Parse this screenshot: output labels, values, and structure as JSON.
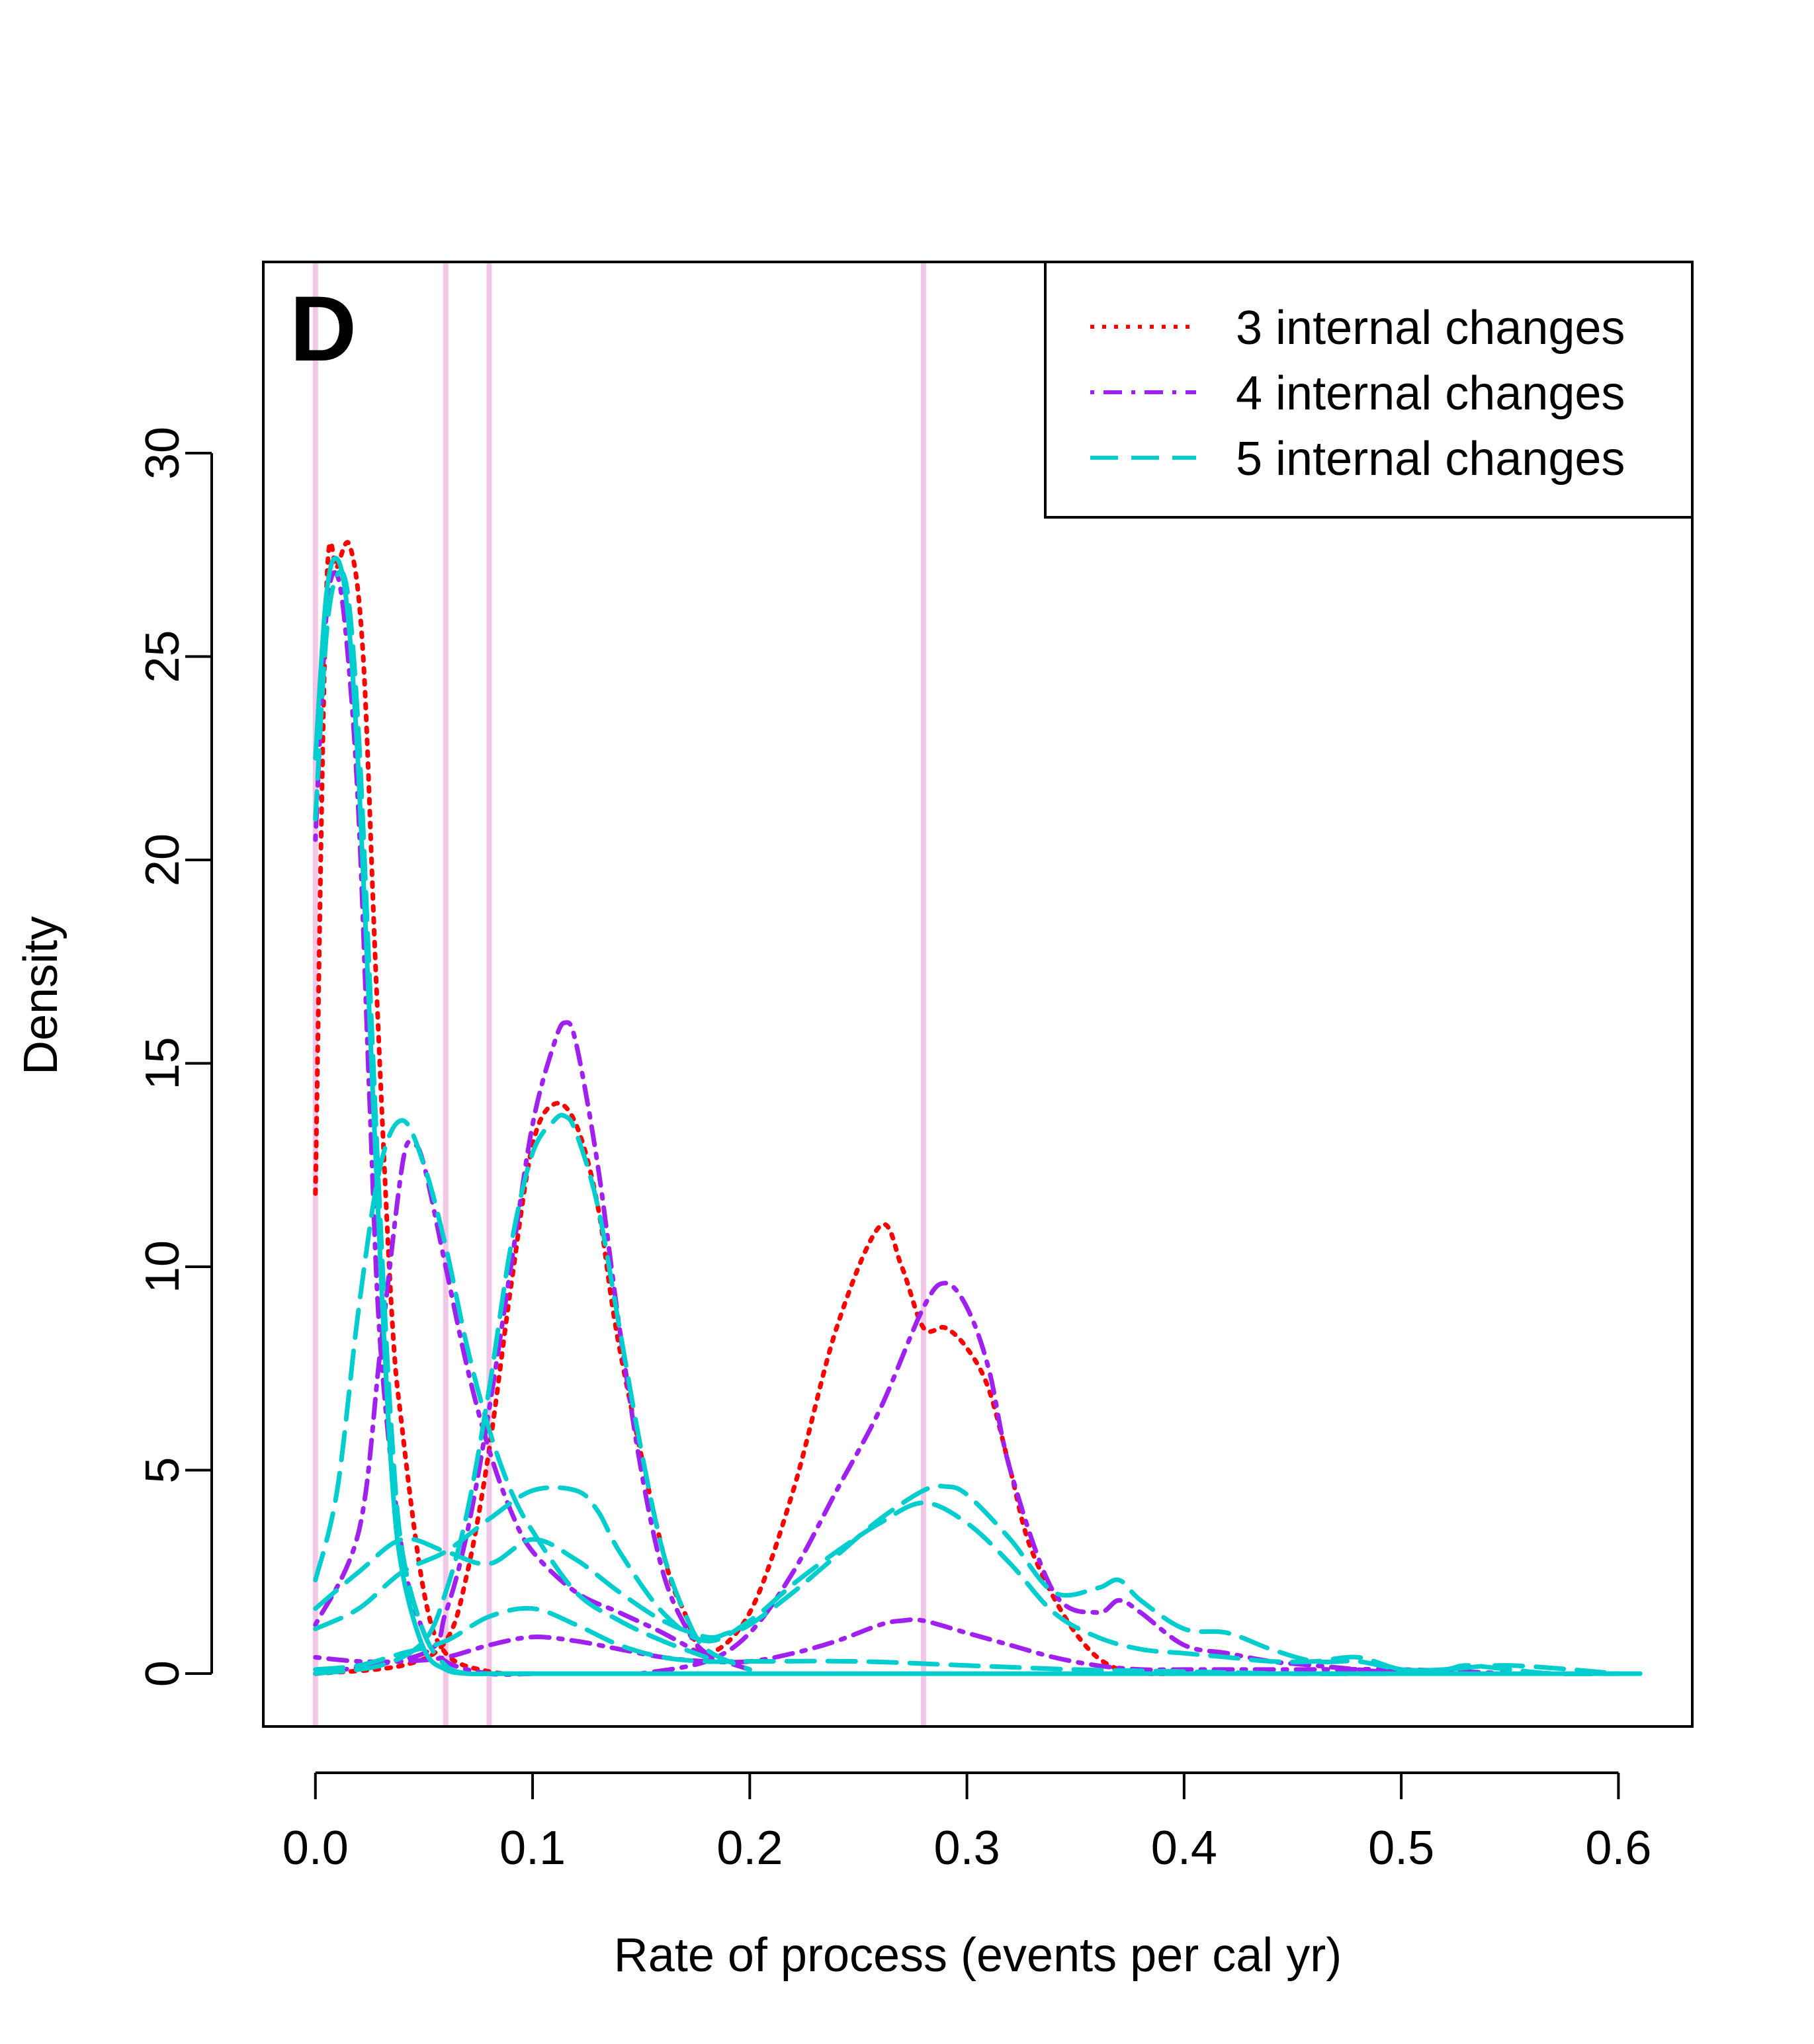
{
  "chart_data": {
    "type": "line",
    "panel_label": "D",
    "xlabel": "Rate of process (events per cal yr)",
    "ylabel": "Density",
    "xlim": [
      -0.024,
      0.634
    ],
    "ylim": [
      -1.3,
      34.7
    ],
    "x_ticks": [
      0.0,
      0.1,
      0.2,
      0.3,
      0.4,
      0.5,
      0.6
    ],
    "x_tick_labels": [
      "0.0",
      "0.1",
      "0.2",
      "0.3",
      "0.4",
      "0.5",
      "0.6"
    ],
    "y_ticks": [
      0,
      5,
      10,
      15,
      20,
      25,
      30
    ],
    "y_tick_labels": [
      "0",
      "5",
      "10",
      "15",
      "20",
      "25",
      "30"
    ],
    "grid": false,
    "legend_position": "top-right",
    "colors": {
      "red": "#ff0000",
      "purple": "#a020f0",
      "cyan": "#00cdcd",
      "vline": "#f2c6e6"
    },
    "vlines": [
      0.0,
      0.06,
      0.08,
      0.28
    ],
    "legend": [
      {
        "label": "3 internal changes",
        "color": "#ff0000",
        "dash": "dotted"
      },
      {
        "label": "4 internal changes",
        "color": "#a020f0",
        "dash": "dotdash"
      },
      {
        "label": "5 internal changes",
        "color": "#00cdcd",
        "dash": "dashed"
      }
    ],
    "series": [
      {
        "group": "3 internal changes",
        "color": "#ff0000",
        "dash": "dotted",
        "x": [
          0,
          0.005,
          0.01,
          0.016,
          0.022,
          0.028,
          0.035,
          0.04,
          0.05,
          0.06,
          0.08,
          0.1
        ],
        "y": [
          11.8,
          26.5,
          27.2,
          27.7,
          25.0,
          17.0,
          9.0,
          6.0,
          2.0,
          0.5,
          0.05,
          0
        ]
      },
      {
        "group": "3 internal changes",
        "color": "#ff0000",
        "dash": "dotted",
        "x": [
          0,
          0.04,
          0.06,
          0.07,
          0.08,
          0.09,
          0.1,
          0.11,
          0.12,
          0.13,
          0.14,
          0.16,
          0.17,
          0.18,
          0.2,
          0.22,
          0.24,
          0.26,
          0.27,
          0.28,
          0.29,
          0.3,
          0.31,
          0.32,
          0.33,
          0.35,
          0.37,
          0.4
        ],
        "y": [
          0,
          0.2,
          0.8,
          2.5,
          5.5,
          9.5,
          13.0,
          14.0,
          13.5,
          11.5,
          8.0,
          3.0,
          1.5,
          0.5,
          1.5,
          4.5,
          8.5,
          11.0,
          10.0,
          8.5,
          8.5,
          8.0,
          7.0,
          5.0,
          3.0,
          1.0,
          0.1,
          0
        ]
      }
    ],
    "series_b": [
      {
        "group": "4 internal changes",
        "color": "#a020f0",
        "dash": "dotdash",
        "x": [
          0,
          0.005,
          0.01,
          0.015,
          0.02,
          0.025,
          0.03,
          0.04,
          0.05,
          0.06,
          0.08,
          0.1
        ],
        "y": [
          20.5,
          26.0,
          27.0,
          25.0,
          21.0,
          14.0,
          8.0,
          3.0,
          1.0,
          0.3,
          0,
          0
        ]
      },
      {
        "group": "4 internal changes",
        "color": "#a020f0",
        "dash": "dotdash",
        "x": [
          0,
          0.02,
          0.03,
          0.04,
          0.045,
          0.05,
          0.06,
          0.07,
          0.08,
          0.09,
          0.1,
          0.12,
          0.14,
          0.16,
          0.18
        ],
        "y": [
          1.2,
          3.5,
          8.0,
          12.5,
          13.0,
          12.5,
          10.0,
          7.5,
          5.5,
          4.0,
          3.0,
          2.0,
          1.5,
          1.0,
          0.4
        ]
      },
      {
        "group": "4 internal changes",
        "color": "#a020f0",
        "dash": "dotdash",
        "x": [
          0,
          0.05,
          0.06,
          0.07,
          0.08,
          0.09,
          0.1,
          0.11,
          0.115,
          0.12,
          0.13,
          0.14,
          0.15,
          0.16,
          0.17,
          0.18,
          0.2
        ],
        "y": [
          0,
          0.5,
          1.5,
          3.5,
          6.5,
          10.0,
          13.5,
          15.5,
          16.0,
          15.5,
          12.5,
          8.5,
          5.0,
          2.5,
          1.2,
          0.5,
          0.1
        ]
      },
      {
        "group": "4 internal changes",
        "color": "#a020f0",
        "dash": "dotdash",
        "x": [
          0.15,
          0.18,
          0.2,
          0.22,
          0.24,
          0.26,
          0.28,
          0.29,
          0.3,
          0.31,
          0.32,
          0.34,
          0.36,
          0.37,
          0.38,
          0.4,
          0.42,
          0.44,
          0.46,
          0.48,
          0.5
        ],
        "y": [
          0,
          0.3,
          1.0,
          2.5,
          4.5,
          6.5,
          9.0,
          9.6,
          9.0,
          7.5,
          5.0,
          2.0,
          1.5,
          1.8,
          1.5,
          0.7,
          0.5,
          0.3,
          0.2,
          0.1,
          0
        ]
      },
      {
        "group": "4 internal changes",
        "color": "#a020f0",
        "dash": "dotdash",
        "x": [
          0,
          0.02,
          0.04,
          0.06,
          0.08,
          0.1,
          0.12,
          0.14,
          0.16,
          0.18,
          0.2,
          0.22,
          0.24,
          0.26,
          0.27,
          0.28,
          0.3,
          0.32,
          0.34,
          0.36,
          0.38,
          0.4,
          0.45,
          0.5,
          0.55
        ],
        "y": [
          0.4,
          0.3,
          0.3,
          0.4,
          0.7,
          0.9,
          0.8,
          0.6,
          0.4,
          0.3,
          0.3,
          0.5,
          0.8,
          1.2,
          1.3,
          1.3,
          1.0,
          0.7,
          0.4,
          0.2,
          0.1,
          0.1,
          0.1,
          0.1,
          0
        ]
      }
    ],
    "series_c": [
      {
        "group": "5 internal changes",
        "color": "#00cdcd",
        "dash": "solid",
        "x": [
          0,
          0.005,
          0.01,
          0.015,
          0.02,
          0.025,
          0.03,
          0.035,
          0.04,
          0.05,
          0.06,
          0.07,
          0.08,
          0.1,
          0.2,
          0.3,
          0.4,
          0.5,
          0.61
        ],
        "y": [
          22.5,
          26.5,
          27.4,
          26.0,
          22.0,
          16.0,
          10.0,
          5.0,
          2.5,
          0.6,
          0.1,
          0,
          0,
          0,
          0,
          0,
          0,
          0,
          0
        ]
      },
      {
        "group": "5 internal changes",
        "color": "#00cdcd",
        "dash": "dashed",
        "x": [
          0,
          0.005,
          0.01,
          0.015,
          0.02,
          0.025,
          0.03,
          0.035,
          0.04,
          0.05,
          0.06,
          0.07,
          0.08,
          0.1
        ],
        "y": [
          21.0,
          25.5,
          27.0,
          26.5,
          23.0,
          17.0,
          11.0,
          6.0,
          3.0,
          1.0,
          0.2,
          0,
          0,
          0
        ]
      },
      {
        "group": "5 internal changes",
        "color": "#00cdcd",
        "dash": "dashed",
        "x": [
          0,
          0.01,
          0.02,
          0.03,
          0.04,
          0.05,
          0.06,
          0.07,
          0.08,
          0.09,
          0.1,
          0.12,
          0.14,
          0.16,
          0.18
        ],
        "y": [
          2.3,
          4.5,
          9.0,
          12.5,
          13.6,
          12.5,
          10.5,
          8.0,
          6.0,
          4.5,
          3.5,
          2.0,
          1.3,
          0.8,
          0.4
        ]
      },
      {
        "group": "5 internal changes",
        "color": "#00cdcd",
        "dash": "dashed",
        "x": [
          0,
          0.03,
          0.05,
          0.06,
          0.07,
          0.08,
          0.09,
          0.1,
          0.11,
          0.115,
          0.12,
          0.13,
          0.14,
          0.15,
          0.16,
          0.17,
          0.18,
          0.2
        ],
        "y": [
          0,
          0.2,
          0.8,
          2.0,
          4.0,
          7.0,
          10.5,
          12.8,
          13.6,
          13.7,
          13.3,
          11.5,
          8.5,
          5.5,
          3.0,
          1.5,
          0.6,
          0.1
        ]
      },
      {
        "group": "5 internal changes",
        "color": "#00cdcd",
        "dash": "dashed",
        "x": [
          0,
          0.02,
          0.04,
          0.06,
          0.08,
          0.1,
          0.12,
          0.14,
          0.16,
          0.18,
          0.19,
          0.2,
          0.22,
          0.24,
          0.26,
          0.28,
          0.29,
          0.3,
          0.32,
          0.34,
          0.36,
          0.37,
          0.38,
          0.4,
          0.42,
          0.44,
          0.46,
          0.48,
          0.5,
          0.52,
          0.53,
          0.55,
          0.57,
          0.6
        ],
        "y": [
          1.6,
          2.5,
          3.3,
          3.0,
          2.7,
          3.3,
          2.8,
          2.0,
          1.3,
          0.9,
          1.0,
          1.2,
          2.0,
          2.9,
          3.8,
          4.5,
          4.6,
          4.4,
          3.3,
          2.0,
          2.1,
          2.3,
          1.8,
          1.1,
          1.0,
          0.6,
          0.3,
          0.3,
          0.1,
          0.1,
          0.2,
          0.1,
          0,
          0
        ]
      },
      {
        "group": "5 internal changes",
        "color": "#00cdcd",
        "dash": "dashed",
        "x": [
          0,
          0.02,
          0.04,
          0.06,
          0.08,
          0.1,
          0.12,
          0.13,
          0.14,
          0.16,
          0.18,
          0.2,
          0.22,
          0.24,
          0.26,
          0.28,
          0.3,
          0.32,
          0.34,
          0.36,
          0.38,
          0.4,
          0.42,
          0.44,
          0.46,
          0.48,
          0.5,
          0.52,
          0.55,
          0.6
        ],
        "y": [
          1.1,
          1.6,
          2.5,
          3.0,
          3.8,
          4.5,
          4.5,
          4.0,
          3.0,
          1.5,
          0.8,
          1.3,
          2.2,
          3.0,
          3.7,
          4.2,
          3.7,
          2.7,
          1.5,
          0.9,
          0.6,
          0.5,
          0.4,
          0.3,
          0.3,
          0.4,
          0.1,
          0.1,
          0.2,
          0
        ]
      },
      {
        "group": "5 internal changes",
        "color": "#00cdcd",
        "dash": "dashed",
        "x": [
          0,
          0.02,
          0.04,
          0.06,
          0.08,
          0.1,
          0.12,
          0.14,
          0.16,
          0.18,
          0.2,
          0.25,
          0.3,
          0.35,
          0.4,
          0.45,
          0.5
        ],
        "y": [
          0.1,
          0.2,
          0.5,
          0.8,
          1.4,
          1.6,
          1.2,
          0.7,
          0.4,
          0.3,
          0.3,
          0.3,
          0.2,
          0.1,
          0.05,
          0,
          0
        ]
      }
    ]
  }
}
